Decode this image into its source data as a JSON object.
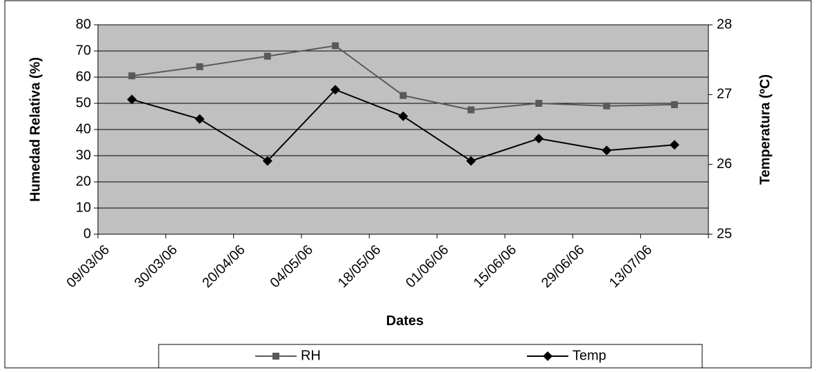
{
  "chart_data": {
    "type": "line",
    "x_label": "Dates",
    "y_label": "Humedad Relativa (%)",
    "y2_label": "Temperatura (ºC)",
    "categories": [
      "09/03/06",
      "30/03/06",
      "20/04/06",
      "04/05/06",
      "18/05/06",
      "01/06/06",
      "15/06/06",
      "29/06/06",
      "13/07/06"
    ],
    "series": [
      {
        "name": "RH",
        "color": "#595959",
        "marker": "square",
        "values": [
          60.5,
          64,
          68,
          72,
          53,
          47.5,
          50,
          49,
          49.5
        ]
      },
      {
        "name": "Temp",
        "color": "#000000",
        "marker": "diamond",
        "axis": "y2",
        "values": [
          26.93,
          26.65,
          26.05,
          27.07,
          26.69,
          26.05,
          26.37,
          26.2,
          26.28
        ]
      }
    ],
    "ylim": [
      0,
      80
    ],
    "yticks": [
      0,
      10,
      20,
      30,
      40,
      50,
      60,
      70,
      80
    ],
    "y2lim": [
      25,
      28
    ],
    "y2ticks": [
      25,
      26,
      27,
      28
    ],
    "grid": true,
    "legend": "bottom",
    "background": "#c0c0c0"
  }
}
